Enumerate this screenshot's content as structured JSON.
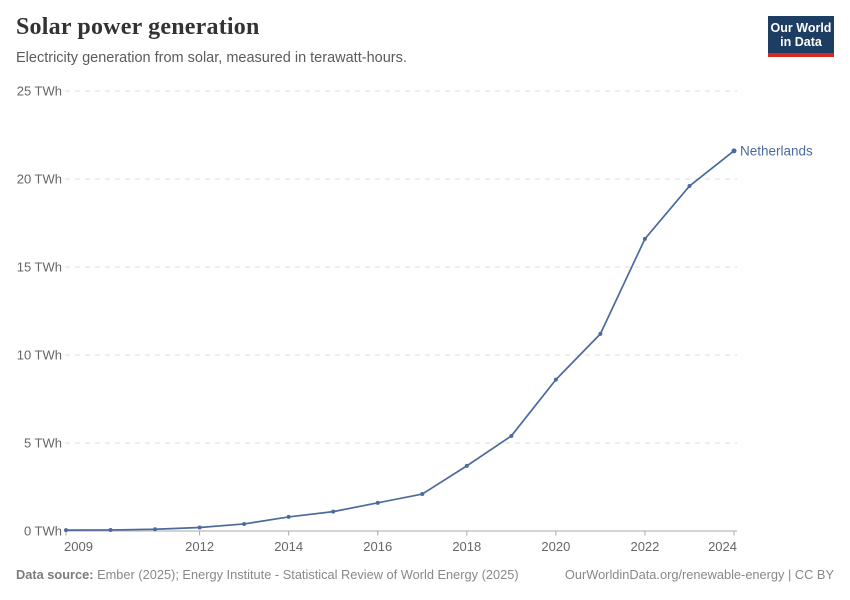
{
  "header": {
    "title": "Solar power generation",
    "subtitle": "Electricity generation from solar, measured in terawatt-hours."
  },
  "logo": {
    "line1": "Our World",
    "line2": "in Data",
    "bg_color": "#1d3d63",
    "stripe_color": "#d42b21"
  },
  "chart_data": {
    "type": "line",
    "title": "Solar power generation",
    "unit": "TWh",
    "x": [
      2009,
      2010,
      2011,
      2012,
      2013,
      2014,
      2015,
      2016,
      2017,
      2018,
      2019,
      2020,
      2021,
      2022,
      2023,
      2024
    ],
    "series": [
      {
        "name": "Netherlands",
        "color": "#4c6a9c",
        "values": [
          0.05,
          0.06,
          0.1,
          0.2,
          0.4,
          0.8,
          1.1,
          1.6,
          2.1,
          3.7,
          5.4,
          8.6,
          11.2,
          16.6,
          19.6,
          21.6
        ]
      }
    ],
    "xlabel": "",
    "ylabel": "",
    "xlim": [
      2009,
      2024
    ],
    "ylim": [
      0,
      25
    ],
    "yticks": [
      0,
      5,
      10,
      15,
      20,
      25
    ],
    "ytick_format": "{v} TWh",
    "xticks": [
      2009,
      2012,
      2014,
      2016,
      2018,
      2020,
      2022,
      2024
    ],
    "grid": "horizontal-dashed",
    "grid_color": "#dddddd",
    "axis_color": "#a8a8a8",
    "legend_position": "line-end-label"
  },
  "footer": {
    "datasource_label": "Data source:",
    "datasource_text": " Ember (2025); Energy Institute - Statistical Review of World Energy (2025)",
    "credit": "OurWorldinData.org/renewable-energy | CC BY"
  }
}
